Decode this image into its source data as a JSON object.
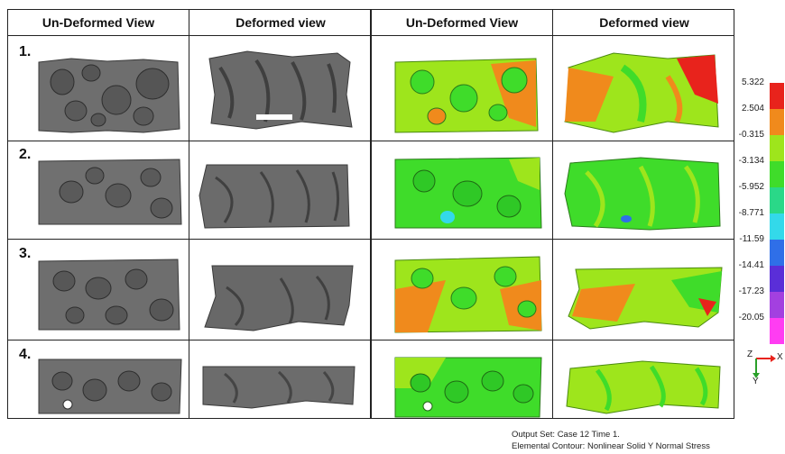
{
  "headers": {
    "left": [
      "Un-Deformed View",
      "Deformed view"
    ],
    "right": [
      "Un-Deformed View",
      "Deformed view"
    ]
  },
  "rows": [
    {
      "label": "1."
    },
    {
      "label": "2."
    },
    {
      "label": "3."
    },
    {
      "label": "4."
    }
  ],
  "legend": {
    "values": [
      "5.322",
      "2.504",
      "-0.315",
      "-3.134",
      "-5.952",
      "-8.771",
      "-11.59",
      "-14.41",
      "-17.23",
      "-20.05"
    ],
    "colors": [
      "#e8231c",
      "#f08a1c",
      "#9ee51c",
      "#3fdc2a",
      "#2ad888",
      "#33d9ea",
      "#2f6fe8",
      "#5a2ed8",
      "#a340e0",
      "#ff3df2"
    ]
  },
  "axis": {
    "z_label": "Z",
    "x_label": "X",
    "y_label": "Y"
  },
  "footer": {
    "line1": "Output Set: Case 12 Time 1.",
    "line2": "Elemental Contour: Nonlinear Solid Y Normal Stress"
  }
}
